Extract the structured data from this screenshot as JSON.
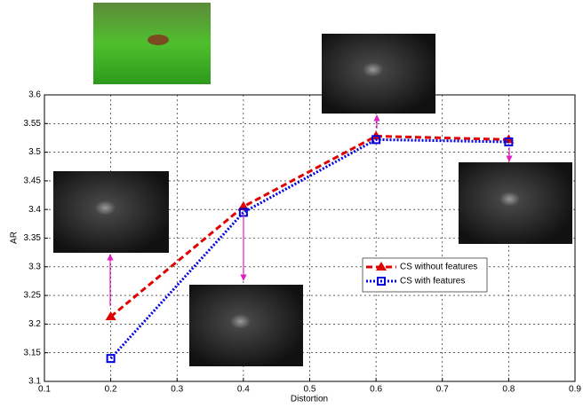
{
  "chart_data": {
    "type": "line",
    "xlabel": "Distortion",
    "ylabel": "AR",
    "x": [
      0.2,
      0.4,
      0.6,
      0.8
    ],
    "series": [
      {
        "name": "CS without features",
        "color": "#e00000",
        "dash": "7 4",
        "marker": "triangle",
        "values": [
          3.213,
          3.405,
          3.528,
          3.522
        ]
      },
      {
        "name": "CS with features",
        "color": "#0000e0",
        "dash": "2 2",
        "marker": "square",
        "values": [
          3.14,
          3.395,
          3.522,
          3.518
        ]
      }
    ],
    "xlim": [
      0.1,
      0.9
    ],
    "xticks": [
      0.1,
      0.2,
      0.3,
      0.4,
      0.5,
      0.6,
      0.7,
      0.8,
      0.9
    ],
    "ylim": [
      3.1,
      3.6
    ],
    "yticks": [
      3.1,
      3.15,
      3.2,
      3.25,
      3.3,
      3.35,
      3.4,
      3.45,
      3.5,
      3.55,
      3.6
    ],
    "grid": true,
    "legend": "center-right"
  }
}
